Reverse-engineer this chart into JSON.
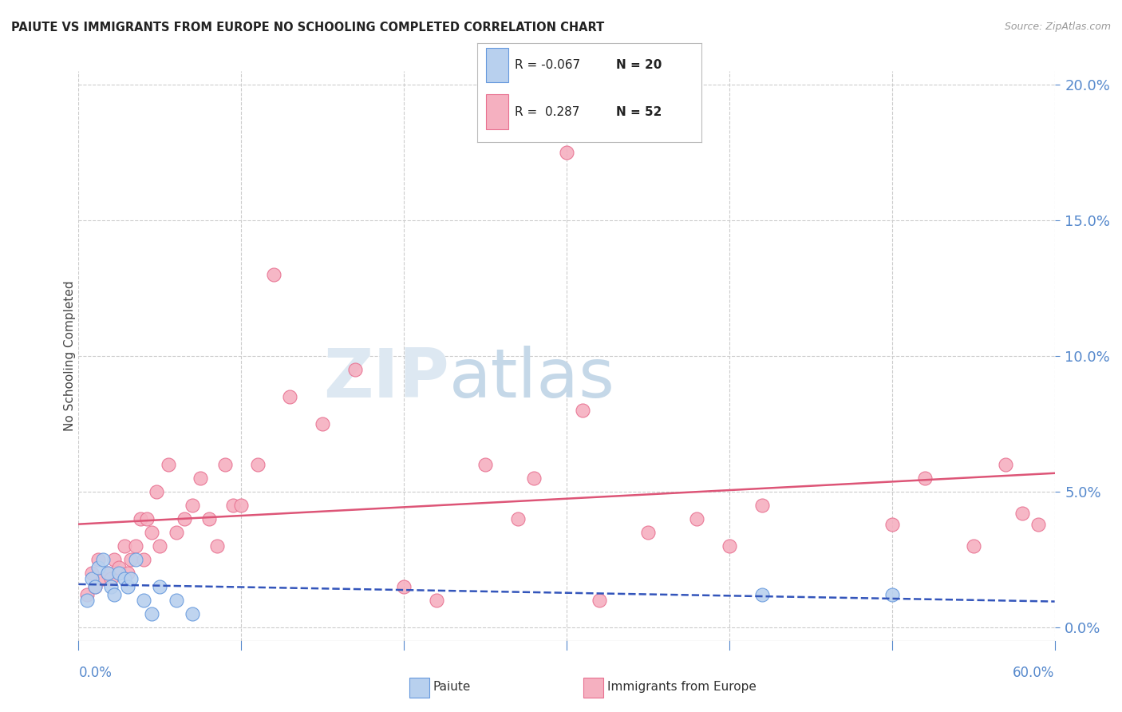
{
  "title": "PAIUTE VS IMMIGRANTS FROM EUROPE NO SCHOOLING COMPLETED CORRELATION CHART",
  "source": "Source: ZipAtlas.com",
  "ylabel": "No Schooling Completed",
  "xlim": [
    0.0,
    0.6
  ],
  "ylim": [
    -0.005,
    0.205
  ],
  "paiute_color": "#b8d0ee",
  "europe_color": "#f5b0c0",
  "paiute_edge_color": "#6699dd",
  "europe_edge_color": "#e87090",
  "paiute_line_color": "#3355bb",
  "europe_line_color": "#dd5577",
  "legend_R_paiute": "-0.067",
  "legend_N_paiute": "20",
  "legend_R_europe": "0.287",
  "legend_N_europe": "52",
  "background_color": "#ffffff",
  "grid_color": "#cccccc",
  "title_color": "#222222",
  "axis_label_color": "#5588cc",
  "paiute_x": [
    0.005,
    0.008,
    0.01,
    0.012,
    0.015,
    0.018,
    0.02,
    0.022,
    0.025,
    0.028,
    0.03,
    0.032,
    0.035,
    0.04,
    0.045,
    0.05,
    0.06,
    0.07,
    0.42,
    0.5
  ],
  "paiute_y": [
    0.01,
    0.018,
    0.015,
    0.022,
    0.025,
    0.02,
    0.015,
    0.012,
    0.02,
    0.018,
    0.015,
    0.018,
    0.025,
    0.01,
    0.005,
    0.015,
    0.01,
    0.005,
    0.012,
    0.012
  ],
  "europe_x": [
    0.005,
    0.008,
    0.01,
    0.012,
    0.015,
    0.018,
    0.02,
    0.022,
    0.025,
    0.028,
    0.03,
    0.032,
    0.035,
    0.038,
    0.04,
    0.042,
    0.045,
    0.048,
    0.05,
    0.055,
    0.06,
    0.065,
    0.07,
    0.075,
    0.08,
    0.085,
    0.09,
    0.095,
    0.1,
    0.11,
    0.12,
    0.13,
    0.15,
    0.17,
    0.2,
    0.22,
    0.25,
    0.27,
    0.28,
    0.3,
    0.31,
    0.32,
    0.35,
    0.38,
    0.4,
    0.42,
    0.5,
    0.52,
    0.55,
    0.57,
    0.58,
    0.59
  ],
  "europe_y": [
    0.012,
    0.02,
    0.015,
    0.025,
    0.018,
    0.02,
    0.018,
    0.025,
    0.022,
    0.03,
    0.02,
    0.025,
    0.03,
    0.04,
    0.025,
    0.04,
    0.035,
    0.05,
    0.03,
    0.06,
    0.035,
    0.04,
    0.045,
    0.055,
    0.04,
    0.03,
    0.06,
    0.045,
    0.045,
    0.06,
    0.13,
    0.085,
    0.075,
    0.095,
    0.015,
    0.01,
    0.06,
    0.04,
    0.055,
    0.175,
    0.08,
    0.01,
    0.035,
    0.04,
    0.03,
    0.045,
    0.038,
    0.055,
    0.03,
    0.06,
    0.042,
    0.038
  ]
}
